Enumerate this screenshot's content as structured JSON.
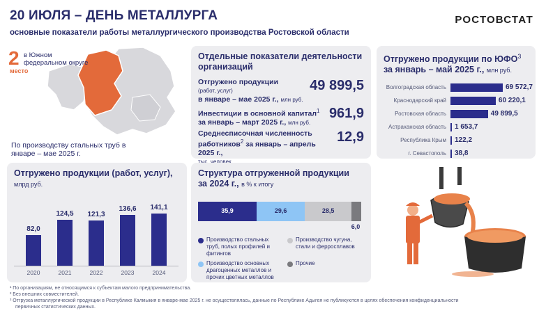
{
  "header": {
    "title": "20 ИЮЛЯ – ДЕНЬ МЕТАЛЛУРГА",
    "subtitle": "основные показатели работы металлургического производства Ростовской области",
    "brand": "РОСТОВСТАТ"
  },
  "rank": {
    "number": "2",
    "text": "в Южном федеральном округе",
    "place": "место",
    "note": "По производству стальных труб в январе – мае 2025 г."
  },
  "indicators": {
    "title": "Отдельные показатели деятельности организаций",
    "items": [
      {
        "label": "Отгружено продукции",
        "sub": "(работ, услуг)",
        "period": "в январе – мае 2025 г.,",
        "unit": "млн руб.",
        "value": "49 899,5"
      },
      {
        "label": "Инвестиции в основной капитал",
        "sup": "1",
        "period": "за январь – март 2025 г.,",
        "unit": "млн руб.",
        "value": "961,9"
      },
      {
        "label": "Среднесписочная численность работников",
        "sup": "2",
        "period": "за январь – апрель 2025 г.,",
        "unit": "тыс. человек",
        "value": "12,9"
      }
    ]
  },
  "yfo": {
    "title": "Отгружено продукции по ЮФО",
    "sup": "3",
    "period": "за январь – май 2025 г.,",
    "unit": "млн руб.",
    "rows": [
      {
        "region": "Волгоградская область",
        "value": "69 572,7",
        "num": 69572.7
      },
      {
        "region": "Краснодарский край",
        "value": "60 220,1",
        "num": 60220.1
      },
      {
        "region": "Ростовская область",
        "value": "49 899,5",
        "num": 49899.5
      },
      {
        "region": "Астраханская область",
        "value": "1 653,7",
        "num": 1653.7
      },
      {
        "region": "Республика Крым",
        "value": "122,2",
        "num": 122.2
      },
      {
        "region": "г. Севастополь",
        "value": "38,8",
        "num": 38.8
      }
    ]
  },
  "shipped": {
    "title": "Отгружено продукции (работ, услуг),",
    "unit": "млрд руб."
  },
  "structure": {
    "title": "Структура отгруженной продукции",
    "period": "за 2024 г.,",
    "unit": "в % к итогу",
    "legend": [
      {
        "label": "Производство стальных труб, полых профилей и фитингов",
        "color": "#2b2d8c"
      },
      {
        "label": "Производство чугуна, стали и ферросплавов",
        "color": "#c9c9cc"
      },
      {
        "label": "Производство основных драгоценных металлов и прочих цветных металлов",
        "color": "#8ec5f5"
      },
      {
        "label": "Прочие",
        "color": "#7a7a7e"
      }
    ]
  },
  "chart_data": [
    {
      "type": "bar",
      "title": "Отгружено продукции (работ, услуг), млрд руб.",
      "categories": [
        "2020",
        "2021",
        "2022",
        "2023",
        "2024"
      ],
      "values": [
        82.0,
        124.5,
        121.3,
        136.6,
        141.1
      ],
      "labels": [
        "82,0",
        "124,5",
        "121,3",
        "136,6",
        "141,1"
      ],
      "ylim": [
        0,
        150
      ],
      "color": "#2b2d8c"
    },
    {
      "type": "bar",
      "title": "Структура отгруженной продукции за 2024 г., в % к итогу",
      "categories": [
        "Производство стальных труб, полых профилей и фитингов",
        "Производство основных драгоценных металлов и прочих цветных металлов",
        "Производство чугуна, стали и ферросплавов",
        "Прочие"
      ],
      "values": [
        35.9,
        29.6,
        28.5,
        6.0
      ],
      "labels": [
        "35,9",
        "29,6",
        "28,5",
        "6,0"
      ],
      "colors": [
        "#2b2d8c",
        "#8ec5f5",
        "#c9c9cc",
        "#7a7a7e"
      ]
    }
  ],
  "footnotes": [
    "¹ По организациям, не относящимся к субъектам малого предпринимательства.",
    "² Без внешних совместителей.",
    "³ Отгрузка металлургической продукции в Республике Калмыкия в январе-мае 2025 г. не осуществлялась, данные по Республике Адыгея не публикуются в целях обеспечения конфиденциальности",
    "первичных статистических данных."
  ]
}
